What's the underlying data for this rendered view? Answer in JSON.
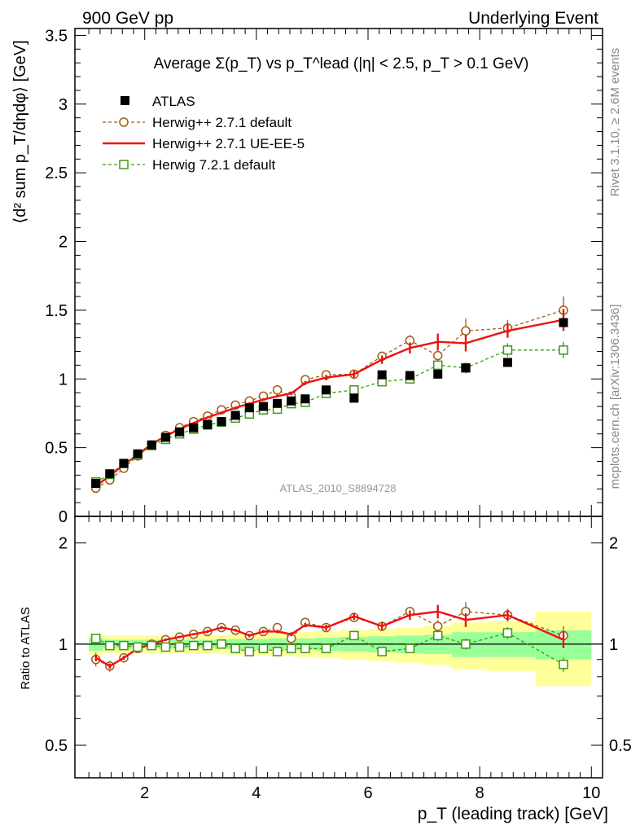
{
  "header": {
    "left": "900 GeV pp",
    "right": "Underlying Event"
  },
  "side_labels": {
    "rivet": "Rivet 3.1.10, ≥ 2.6M events",
    "mcplots": "mcplots.cern.ch [arXiv:1306.3436]"
  },
  "chart_data": {
    "type": "scatter",
    "title": "Average Σ(p_T) vs p_T^lead (|η| < 2.5, p_T > 0.1 GeV)",
    "analysis_label": "ATLAS_2010_S8894728",
    "main": {
      "ylabel": "⟨d² sum p_T/dηdφ⟩ [GeV]",
      "ylim": [
        0,
        3.55
      ],
      "yticks": [
        0,
        0.5,
        1,
        1.5,
        2,
        2.5,
        3,
        3.5
      ],
      "ytick_labels": [
        "0",
        "0.5",
        "1",
        "1.5",
        "2",
        "2.5",
        "3",
        "3.5"
      ]
    },
    "ratio": {
      "ylabel": "Ratio to ATLAS",
      "ylim": [
        0.4,
        2.4
      ],
      "log": true,
      "yticks": [
        0.5,
        1,
        2
      ],
      "ytick_labels": [
        "0.5",
        "1",
        "2"
      ]
    },
    "xlabel": "p_T (leading track) [GeV]",
    "xlim": [
      0.75,
      10.2
    ],
    "xticks": [
      2,
      4,
      6,
      8,
      10
    ],
    "xtick_labels": [
      "2",
      "4",
      "6",
      "8",
      "10"
    ],
    "legend_position": "top-left",
    "series": [
      {
        "name": "ATLAS",
        "style": "data",
        "color": "#000000",
        "x": [
          1.125,
          1.375,
          1.625,
          1.875,
          2.125,
          2.375,
          2.625,
          2.875,
          3.125,
          3.375,
          3.625,
          3.875,
          4.125,
          4.375,
          4.625,
          4.875,
          5.25,
          5.75,
          6.25,
          6.75,
          7.25,
          7.75,
          8.5,
          9.5
        ],
        "y": [
          0.24,
          0.31,
          0.385,
          0.455,
          0.52,
          0.575,
          0.615,
          0.645,
          0.668,
          0.69,
          0.735,
          0.79,
          0.8,
          0.822,
          0.84,
          0.855,
          0.92,
          0.86,
          1.03,
          1.025,
          1.035,
          1.08,
          1.12,
          1.41
        ],
        "ratio": [
          1,
          1,
          1,
          1,
          1,
          1,
          1,
          1,
          1,
          1,
          1,
          1,
          1,
          1,
          1,
          1,
          1,
          1,
          1,
          1,
          1,
          1,
          1,
          1
        ],
        "band_inner": [
          0.045,
          0.03,
          0.03,
          0.03,
          0.03,
          0.03,
          0.03,
          0.03,
          0.03,
          0.03,
          0.035,
          0.035,
          0.035,
          0.04,
          0.04,
          0.04,
          0.045,
          0.05,
          0.055,
          0.06,
          0.065,
          0.085,
          0.085,
          0.1
        ],
        "band_outer": [
          0.07,
          0.06,
          0.06,
          0.06,
          0.06,
          0.06,
          0.06,
          0.065,
          0.065,
          0.065,
          0.07,
          0.07,
          0.075,
          0.08,
          0.08,
          0.085,
          0.09,
          0.1,
          0.11,
          0.12,
          0.135,
          0.16,
          0.17,
          0.25
        ]
      },
      {
        "name": "Herwig++ 2.7.1 default",
        "style": "circle-dashed",
        "color": "#a05a14",
        "x": [
          1.125,
          1.375,
          1.625,
          1.875,
          2.125,
          2.375,
          2.625,
          2.875,
          3.125,
          3.375,
          3.625,
          3.875,
          4.125,
          4.375,
          4.625,
          4.875,
          5.25,
          5.75,
          6.25,
          6.75,
          7.25,
          7.75,
          8.5,
          9.5
        ],
        "y": [
          0.205,
          0.265,
          0.35,
          0.44,
          0.52,
          0.59,
          0.645,
          0.69,
          0.73,
          0.775,
          0.81,
          0.84,
          0.875,
          0.92,
          0.875,
          0.995,
          1.03,
          1.035,
          1.165,
          1.28,
          1.17,
          1.35,
          1.37,
          1.5
        ],
        "ratio": [
          0.9,
          0.86,
          0.91,
          0.97,
          1.0,
          1.03,
          1.05,
          1.07,
          1.09,
          1.12,
          1.1,
          1.06,
          1.09,
          1.12,
          1.04,
          1.16,
          1.12,
          1.2,
          1.13,
          1.25,
          1.13,
          1.25,
          1.22,
          1.06
        ],
        "err": [
          0.01,
          0.01,
          0.01,
          0.01,
          0.01,
          0.01,
          0.01,
          0.01,
          0.01,
          0.01,
          0.015,
          0.015,
          0.015,
          0.015,
          0.02,
          0.02,
          0.02,
          0.025,
          0.03,
          0.04,
          0.05,
          0.09,
          0.06,
          0.1
        ]
      },
      {
        "name": "Herwig++ 2.7.1 UE-EE-5",
        "style": "solid",
        "color": "#ee1111",
        "x": [
          1.125,
          1.375,
          1.625,
          1.875,
          2.125,
          2.375,
          2.625,
          2.875,
          3.125,
          3.375,
          3.625,
          3.875,
          4.125,
          4.375,
          4.625,
          4.875,
          5.25,
          5.75,
          6.25,
          6.75,
          7.25,
          7.75,
          8.5,
          9.5
        ],
        "y": [
          0.22,
          0.295,
          0.375,
          0.45,
          0.525,
          0.585,
          0.635,
          0.68,
          0.72,
          0.755,
          0.79,
          0.82,
          0.85,
          0.875,
          0.895,
          0.97,
          1.01,
          1.035,
          1.14,
          1.225,
          1.27,
          1.26,
          1.35,
          1.43
        ],
        "ratio": [
          0.91,
          0.86,
          0.91,
          0.97,
          1.0,
          1.03,
          1.05,
          1.07,
          1.09,
          1.12,
          1.1,
          1.06,
          1.09,
          1.09,
          1.07,
          1.14,
          1.12,
          1.21,
          1.13,
          1.22,
          1.25,
          1.18,
          1.22,
          1.03
        ],
        "err": [
          0.005,
          0.005,
          0.005,
          0.005,
          0.005,
          0.005,
          0.005,
          0.005,
          0.008,
          0.008,
          0.008,
          0.01,
          0.01,
          0.01,
          0.012,
          0.015,
          0.02,
          0.025,
          0.03,
          0.04,
          0.06,
          0.06,
          0.05,
          0.08
        ]
      },
      {
        "name": "Herwig 7.2.1 default",
        "style": "square-dashed",
        "color": "#3c9a14",
        "x": [
          1.125,
          1.375,
          1.625,
          1.875,
          2.125,
          2.375,
          2.625,
          2.875,
          3.125,
          3.375,
          3.625,
          3.875,
          4.125,
          4.375,
          4.625,
          4.875,
          5.25,
          5.75,
          6.25,
          6.75,
          7.25,
          7.75,
          8.5,
          9.5
        ],
        "y": [
          0.25,
          0.305,
          0.385,
          0.445,
          0.515,
          0.56,
          0.6,
          0.635,
          0.665,
          0.685,
          0.715,
          0.745,
          0.775,
          0.78,
          0.82,
          0.83,
          0.895,
          0.92,
          0.98,
          1.0,
          1.1,
          1.08,
          1.21,
          1.21
        ],
        "ratio": [
          1.04,
          0.99,
          0.99,
          0.98,
          0.99,
          0.98,
          0.98,
          0.99,
          0.99,
          1.0,
          0.97,
          0.95,
          0.97,
          0.95,
          0.97,
          0.97,
          0.97,
          1.06,
          0.95,
          0.97,
          1.06,
          1.0,
          1.08,
          0.87
        ],
        "err": [
          0.005,
          0.005,
          0.005,
          0.005,
          0.005,
          0.005,
          0.005,
          0.005,
          0.008,
          0.008,
          0.008,
          0.01,
          0.01,
          0.01,
          0.012,
          0.015,
          0.02,
          0.025,
          0.03,
          0.03,
          0.04,
          0.04,
          0.05,
          0.06
        ]
      }
    ]
  }
}
